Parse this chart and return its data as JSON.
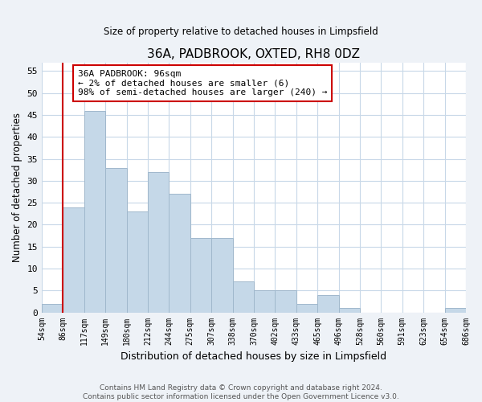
{
  "title": "36A, PADBROOK, OXTED, RH8 0DZ",
  "subtitle": "Size of property relative to detached houses in Limpsfield",
  "xlabel": "Distribution of detached houses by size in Limpsfield",
  "ylabel": "Number of detached properties",
  "bin_labels": [
    "54sqm",
    "86sqm",
    "117sqm",
    "149sqm",
    "180sqm",
    "212sqm",
    "244sqm",
    "275sqm",
    "307sqm",
    "338sqm",
    "370sqm",
    "402sqm",
    "433sqm",
    "465sqm",
    "496sqm",
    "528sqm",
    "560sqm",
    "591sqm",
    "623sqm",
    "654sqm",
    "686sqm"
  ],
  "bar_values": [
    2,
    24,
    46,
    33,
    23,
    32,
    27,
    17,
    17,
    7,
    5,
    5,
    2,
    4,
    1,
    0,
    0,
    0,
    0,
    1
  ],
  "bar_color": "#c5d8e8",
  "bar_edge_color": "#a0b8cc",
  "vline_color": "#cc0000",
  "annotation_text": "36A PADBROOK: 96sqm\n← 2% of detached houses are smaller (6)\n98% of semi-detached houses are larger (240) →",
  "annotation_box_color": "#ffffff",
  "annotation_box_edge_color": "#cc0000",
  "ylim": [
    0,
    57
  ],
  "yticks": [
    0,
    5,
    10,
    15,
    20,
    25,
    30,
    35,
    40,
    45,
    50,
    55
  ],
  "footer_text": "Contains HM Land Registry data © Crown copyright and database right 2024.\nContains public sector information licensed under the Open Government Licence v3.0.",
  "bg_color": "#eef2f7",
  "plot_bg_color": "#ffffff",
  "grid_color": "#c8d8e8"
}
